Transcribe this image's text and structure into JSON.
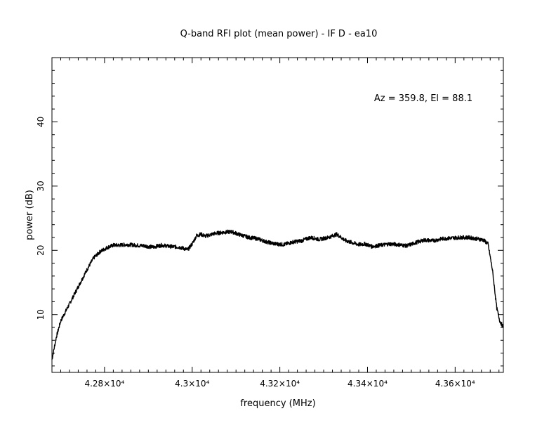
{
  "chart_data": {
    "type": "line",
    "title": "Q-band RFI plot (mean power) - IF D - ea10",
    "xlabel": "frequency (MHz)",
    "ylabel": "power (dB)",
    "annotation": "Az = 359.8, El = 88.1",
    "xlim": [
      42680,
      43710
    ],
    "ylim": [
      1,
      50
    ],
    "x_ticks": [
      {
        "value": 42800,
        "label": "4.28×10⁴"
      },
      {
        "value": 43000,
        "label": "4.3×10⁴"
      },
      {
        "value": 43200,
        "label": "4.32×10⁴"
      },
      {
        "value": 43400,
        "label": "4.34×10⁴"
      },
      {
        "value": 43600,
        "label": "4.36×10⁴"
      }
    ],
    "y_ticks": [
      {
        "value": 10,
        "label": "10"
      },
      {
        "value": 20,
        "label": "20"
      },
      {
        "value": 30,
        "label": "30"
      },
      {
        "value": 40,
        "label": "40"
      }
    ],
    "grid": false,
    "series": [
      {
        "color": "#000000",
        "x": [
          42680,
          42690,
          42700,
          42715,
          42730,
          42745,
          42760,
          42775,
          42790,
          42805,
          42820,
          42835,
          42850,
          42870,
          42890,
          42910,
          42930,
          42950,
          42970,
          42990,
          43000,
          43010,
          43020,
          43030,
          43050,
          43070,
          43090,
          43110,
          43130,
          43150,
          43170,
          43190,
          43210,
          43230,
          43250,
          43270,
          43290,
          43310,
          43330,
          43350,
          43370,
          43380,
          43395,
          43410,
          43430,
          43450,
          43470,
          43490,
          43510,
          43530,
          43550,
          43570,
          43590,
          43610,
          43630,
          43650,
          43665,
          43675,
          43685,
          43695,
          43702,
          43710
        ],
        "y": [
          3.0,
          6.5,
          9.0,
          11.0,
          13.0,
          15.0,
          17.0,
          18.8,
          19.8,
          20.4,
          20.8,
          20.8,
          20.9,
          20.8,
          20.7,
          20.5,
          20.8,
          20.6,
          20.5,
          20.1,
          21.0,
          22.3,
          22.5,
          22.2,
          22.6,
          22.8,
          22.9,
          22.4,
          22.0,
          21.8,
          21.3,
          21.0,
          20.9,
          21.3,
          21.5,
          22.0,
          21.7,
          22.0,
          22.5,
          21.5,
          21.1,
          20.9,
          21.0,
          20.6,
          20.8,
          21.0,
          20.9,
          20.7,
          21.2,
          21.6,
          21.5,
          21.8,
          21.9,
          22.0,
          22.0,
          21.8,
          21.6,
          21.0,
          17.0,
          11.0,
          9.0,
          8.0
        ]
      }
    ]
  }
}
